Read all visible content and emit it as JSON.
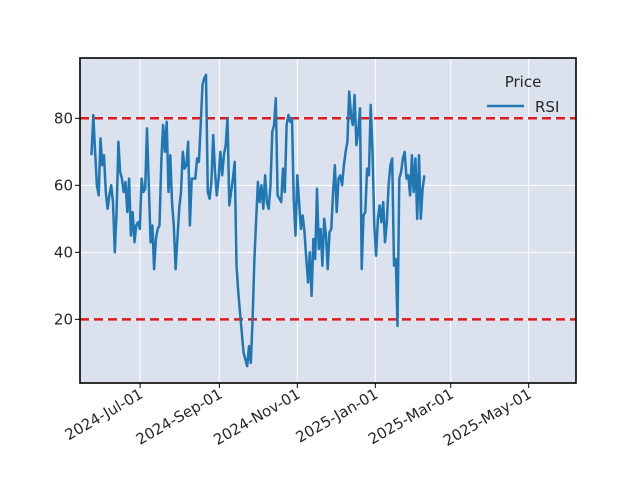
{
  "chart_data": {
    "type": "line",
    "title": "",
    "xlabel": "",
    "ylabel": "",
    "x_tick_labels": [
      "2024-Jul-01",
      "2024-Sep-01",
      "2024-Nov-01",
      "2025-Jan-01",
      "2025-Mar-01",
      "2025-May-01"
    ],
    "y_ticks": [
      20,
      40,
      60,
      80
    ],
    "ylim": [
      1,
      98
    ],
    "xlim": [
      "2024-05-15",
      "2025-06-07"
    ],
    "grid": true,
    "legend": {
      "title": "Price",
      "position": "top-right",
      "entries": [
        "RSI"
      ]
    },
    "reference_lines": [
      {
        "y": 80,
        "style": "dashed",
        "color": "#e31a1c"
      },
      {
        "y": 20,
        "style": "dashed",
        "color": "#e31a1c"
      }
    ],
    "series": [
      {
        "name": "RSI",
        "color": "#1f77b4",
        "start_date": "2024-05-24",
        "step_days": 1.4,
        "values": [
          69,
          81,
          70,
          60,
          57,
          74,
          66,
          69,
          58,
          53,
          57,
          60,
          55,
          40,
          52,
          73,
          64,
          62,
          58,
          61,
          52,
          62,
          45,
          52,
          43,
          48,
          49,
          47,
          62,
          58,
          59,
          77,
          60,
          43,
          48,
          35,
          44,
          47,
          48,
          67,
          78,
          70,
          79,
          58,
          69,
          55,
          48,
          35,
          44,
          53,
          58,
          70,
          65,
          66,
          73,
          48,
          62,
          62,
          62,
          68,
          67,
          78,
          90,
          92,
          93,
          58,
          56,
          61,
          75,
          64,
          57,
          62,
          70,
          63,
          69,
          72,
          80,
          54,
          58,
          62,
          67,
          36,
          28,
          22,
          16,
          10,
          8,
          6,
          12,
          7,
          20,
          38,
          50,
          61,
          55,
          60,
          53,
          63,
          55,
          53,
          60,
          76,
          78,
          86,
          57,
          56,
          55,
          65,
          58,
          78,
          81,
          79,
          80,
          56,
          45,
          63,
          55,
          47,
          51,
          46,
          38,
          31,
          40,
          27,
          44,
          38,
          59,
          41,
          47,
          36,
          50,
          45,
          35,
          46,
          47,
          58,
          66,
          52,
          62,
          63,
          60,
          66,
          70,
          73,
          88,
          81,
          78,
          87,
          72,
          76,
          83,
          35,
          51,
          52,
          65,
          63,
          84,
          70,
          48,
          39,
          50,
          54,
          49,
          55,
          43,
          49,
          60,
          66,
          68,
          36,
          38,
          18,
          62,
          64,
          68,
          70,
          62,
          63,
          57,
          69,
          58,
          68,
          50,
          69,
          50,
          59,
          63
        ]
      }
    ]
  },
  "colors": {
    "plot_background": "#dce1ee",
    "grid": "#ffffff",
    "line": "#1f77b4",
    "reference": "#e31a1c",
    "axes": "#000000"
  }
}
